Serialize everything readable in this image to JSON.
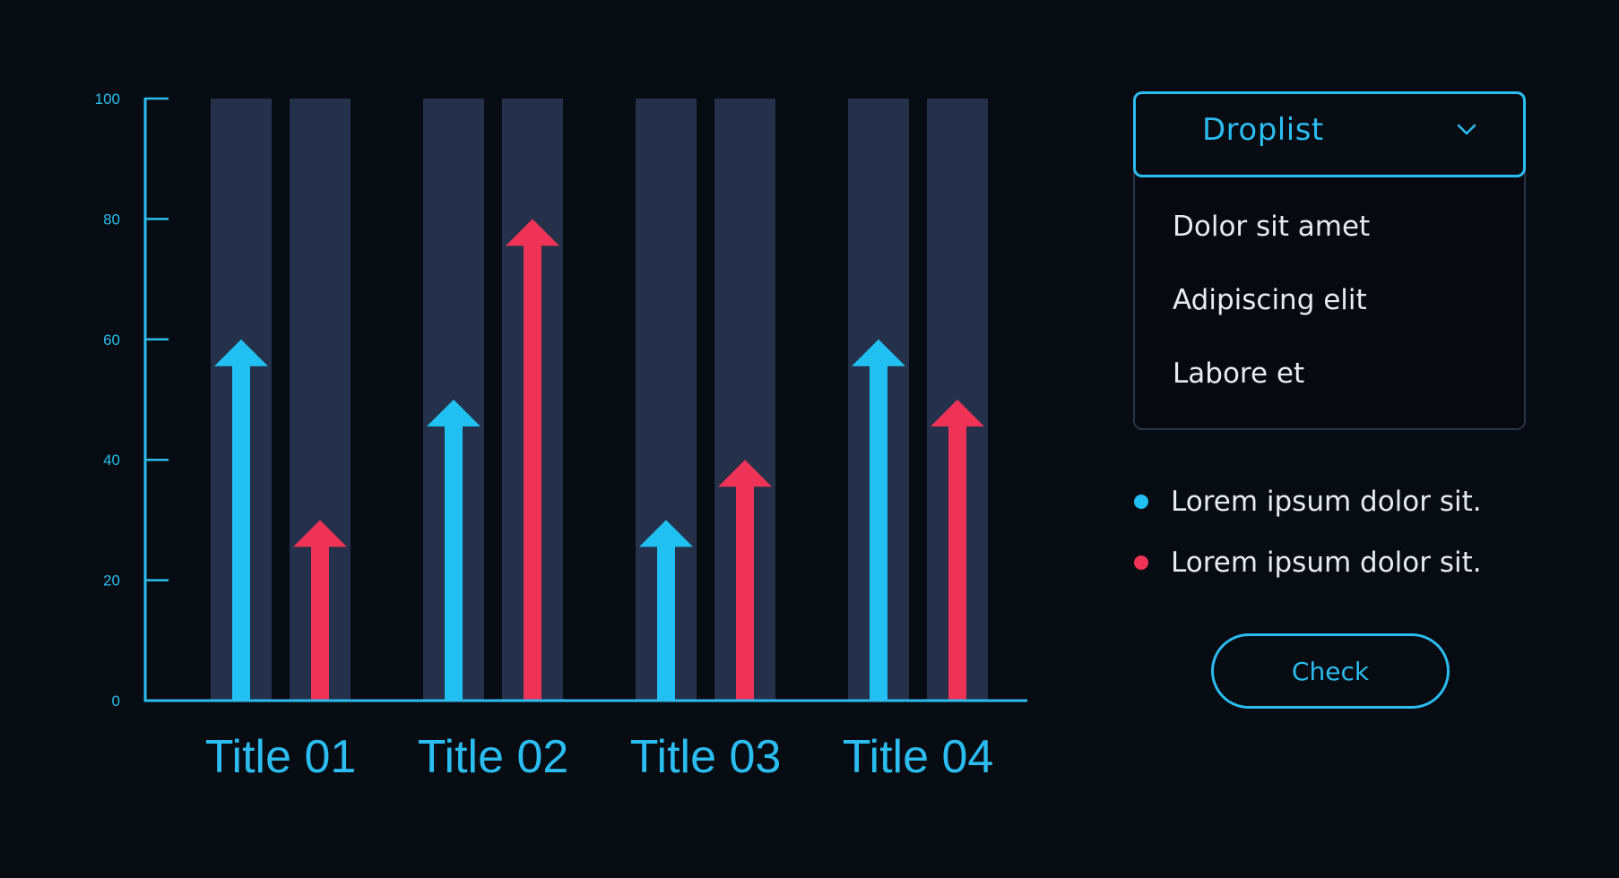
{
  "chart_data": {
    "type": "bar",
    "style": "arrow-bars",
    "categories": [
      "Title 01",
      "Title 02",
      "Title 03",
      "Title 04"
    ],
    "series": [
      {
        "values": [
          60,
          50,
          30,
          60
        ],
        "color": "#20c0f2"
      },
      {
        "values": [
          30,
          80,
          40,
          50
        ],
        "color": "#ee3356"
      }
    ],
    "ylim": [
      0,
      100
    ],
    "yticks": [
      0,
      20,
      40,
      60,
      80,
      100
    ],
    "grid": false,
    "colors": {
      "axis": "#2bbcf0",
      "column_background": "#25314a"
    }
  },
  "droplist": {
    "title": "Droplist",
    "chevron_icon": "chevron-down-icon",
    "items": [
      "Dolor sit amet",
      "Adipiscing elit",
      "Labore et"
    ]
  },
  "legend": {
    "items": [
      {
        "label": "Lorem ipsum dolor sit.",
        "color": "#20c0f2"
      },
      {
        "label": "Lorem ipsum dolor sit.",
        "color": "#ee3356"
      }
    ]
  },
  "check_button": {
    "label": "Check"
  }
}
